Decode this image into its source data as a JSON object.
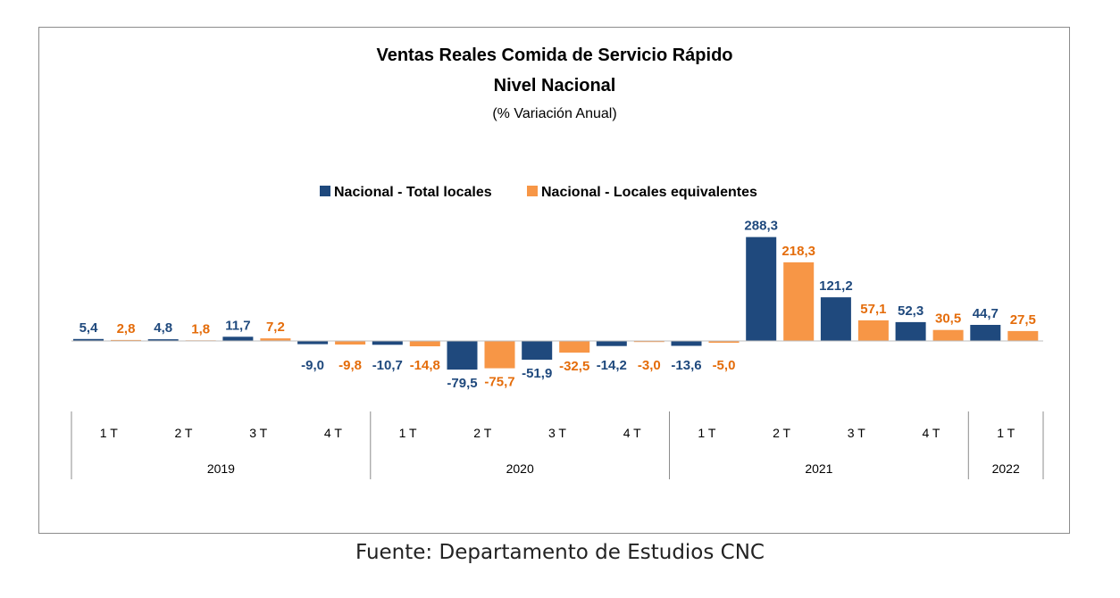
{
  "chart_data": {
    "type": "bar",
    "title": "Ventas Reales Comida de Servicio Rápido",
    "subtitle": "Nivel Nacional",
    "note": "(% Variación Anual)",
    "legend_position": "top-center",
    "grid": false,
    "categories": [
      "1 T",
      "2 T",
      "3 T",
      "4 T",
      "1 T",
      "2 T",
      "3 T",
      "4 T",
      "1 T",
      "2 T",
      "3 T",
      "4 T",
      "1 T"
    ],
    "years": [
      {
        "label": "2019",
        "span": 4
      },
      {
        "label": "2020",
        "span": 4
      },
      {
        "label": "2021",
        "span": 4
      },
      {
        "label": "2022",
        "span": 1
      }
    ],
    "series": [
      {
        "name": "Nacional - Total locales",
        "color": "#1f497d",
        "values": [
          5.4,
          4.8,
          11.7,
          -9.0,
          -10.7,
          -79.5,
          -51.9,
          -14.2,
          -13.6,
          288.3,
          121.2,
          52.3,
          44.7
        ],
        "labels": [
          "5,4",
          "4,8",
          "11,7",
          "-9,0",
          "-10,7",
          "-79,5",
          "-51,9",
          "-14,2",
          "-13,6",
          "288,3",
          "121,2",
          "52,3",
          "44,7"
        ]
      },
      {
        "name": "Nacional - Locales equivalentes",
        "color": "#f79646",
        "label_color": "#e46c0a",
        "values": [
          2.8,
          1.8,
          7.2,
          -9.8,
          -14.8,
          -75.7,
          -32.5,
          -3.0,
          -5.0,
          218.3,
          57.1,
          30.5,
          27.5
        ],
        "labels": [
          "2,8",
          "1,8",
          "7,2",
          "-9,8",
          "-14,8",
          "-75,7",
          "-32,5",
          "-3,0",
          "-5,0",
          "218,3",
          "57,1",
          "30,5",
          "27,5"
        ]
      }
    ],
    "ylim": [
      -100,
      300
    ]
  },
  "footer": {
    "source": "Fuente: Departamento de Estudios CNC"
  }
}
